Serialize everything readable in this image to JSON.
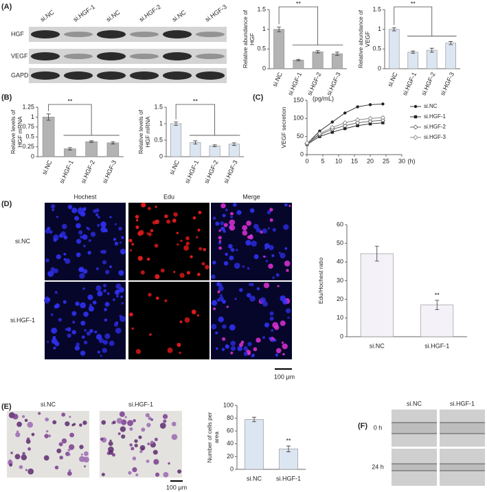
{
  "chart_data": [
    {
      "type": "bar",
      "ylabel": "Relative abundance of HGF",
      "categories": [
        "si.NC",
        "si.HGF-1",
        "si.HGF-2",
        "si.HGF-3"
      ],
      "values": [
        1.0,
        0.22,
        0.43,
        0.38
      ],
      "errors": [
        0.06,
        0.02,
        0.03,
        0.04
      ],
      "color": "#b3b3b3",
      "ylim": [
        0,
        1.5
      ],
      "yticks": [
        0,
        0.5,
        1,
        1.5
      ],
      "annotation": "**"
    },
    {
      "type": "bar",
      "ylabel": "Relative abundance of VEGF",
      "categories": [
        "si.NC",
        "si.HGF-1",
        "si.HGF-2",
        "si.HGF-3"
      ],
      "values": [
        1.0,
        0.42,
        0.47,
        0.65
      ],
      "errors": [
        0.04,
        0.03,
        0.05,
        0.04
      ],
      "color": "#dce6f2",
      "ylim": [
        0,
        1.5
      ],
      "yticks": [
        0,
        0.5,
        1,
        1.5
      ],
      "annotation": "**"
    },
    {
      "type": "bar",
      "ylabel": "Relative levels of HGF mRNA",
      "categories": [
        "si.NC",
        "si.HGF-1",
        "si.HGF-2",
        "si.HGF-3"
      ],
      "values": [
        1.0,
        0.2,
        0.38,
        0.35
      ],
      "errors": [
        0.08,
        0.03,
        0.02,
        0.03
      ],
      "color": "#b3b3b3",
      "ylim": [
        0,
        1.25
      ],
      "yticks": [
        0,
        0.25,
        0.5,
        0.75,
        1,
        1.25
      ],
      "annotation": "**"
    },
    {
      "type": "bar",
      "ylabel": "Relative levels of HGF mRNA",
      "categories": [
        "si.NC",
        "si.HGF-1",
        "si.HGF-2",
        "si.HGF-3"
      ],
      "values": [
        1.0,
        0.43,
        0.33,
        0.38
      ],
      "errors": [
        0.05,
        0.05,
        0.03,
        0.04
      ],
      "color": "#dce6f2",
      "ylim": [
        0,
        1.5
      ],
      "yticks": [
        0,
        0.5,
        1,
        1.5
      ],
      "annotation": "**"
    },
    {
      "type": "line",
      "ylabel": "VEGF secretion",
      "y_unit": "(pg/mL)",
      "x_unit": "(h)",
      "x": [
        0,
        4,
        8,
        12,
        16,
        20,
        24
      ],
      "series": [
        {
          "name": "si.NC",
          "color": "#222222",
          "marker": "circle",
          "values": [
            30,
            65,
            90,
            115,
            132,
            138,
            140
          ]
        },
        {
          "name": "si.HGF-1",
          "color": "#222222",
          "marker": "square",
          "values": [
            28,
            50,
            62,
            72,
            80,
            85,
            88
          ]
        },
        {
          "name": "si.HGF-2",
          "color": "#555555",
          "marker": "diamond-open",
          "values": [
            30,
            55,
            70,
            80,
            88,
            92,
            95
          ]
        },
        {
          "name": "si.HGF-3",
          "color": "#777777",
          "marker": "diamond-open",
          "values": [
            32,
            58,
            75,
            88,
            96,
            100,
            102
          ]
        }
      ],
      "xlim": [
        0,
        30
      ],
      "xticks": [
        0,
        5,
        10,
        15,
        20,
        25,
        30
      ],
      "ylim": [
        0,
        150
      ],
      "yticks": [
        0,
        50,
        100,
        150
      ]
    },
    {
      "type": "bar",
      "ylabel": "Edu/Hochest ratio",
      "categories": [
        "si.NC",
        "si.HGF-1"
      ],
      "values": [
        44.5,
        17
      ],
      "errors": [
        4,
        2.5
      ],
      "color": "#f4f1f8",
      "ylim": [
        0,
        60
      ],
      "yticks": [
        0,
        10,
        20,
        30,
        40,
        50,
        60
      ],
      "annotation": "**"
    },
    {
      "type": "bar",
      "ylabel": "Number of cells per area",
      "categories": [
        "si.NC",
        "si.HGF-1"
      ],
      "values": [
        78,
        32
      ],
      "errors": [
        3.5,
        4.5
      ],
      "color": "#dce6f2",
      "ylim": [
        0,
        100
      ],
      "yticks": [
        0,
        20,
        40,
        60,
        80,
        100
      ],
      "annotation": "**"
    }
  ],
  "figure": {
    "panels": [
      "(A)",
      "(B)",
      "(C)",
      "(D)",
      "(E)",
      "(F)"
    ],
    "blot": {
      "lanes": [
        "si.NC",
        "si.HGF-1",
        "si.NC",
        "si.HGF-2",
        "si.NC",
        "si.HGF-3"
      ],
      "rows": [
        "HGF",
        "VEGF",
        "GAPDH"
      ]
    },
    "d": {
      "columns": [
        "Hochest",
        "Edu",
        "Merge"
      ],
      "rows": [
        "si.NC",
        "si.HGF-1"
      ],
      "scale": "100 μm"
    },
    "e": {
      "columns": [
        "si.NC",
        "si.HGF-1"
      ],
      "scale": "100 μm"
    },
    "f": {
      "columns": [
        "si.NC",
        "si.HGF-1"
      ],
      "rows": [
        "0 h",
        "24 h"
      ]
    }
  }
}
